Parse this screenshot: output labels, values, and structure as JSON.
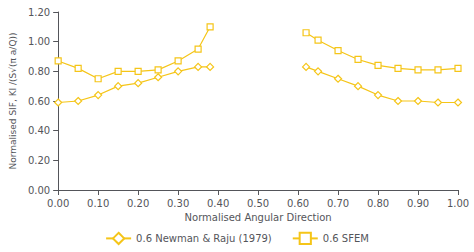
{
  "chart_data": {
    "type": "line",
    "xlabel": "Normalised Angular Direction",
    "ylabel": "Normalised SIF, KI /(S√(π a/Q))",
    "x": [
      0.0,
      0.05,
      0.1,
      0.15,
      0.2,
      0.25,
      0.3,
      0.35,
      0.38,
      null,
      0.62,
      0.65,
      0.7,
      0.75,
      0.8,
      0.85,
      0.9,
      0.95,
      1.0
    ],
    "series": [
      {
        "name": "0.6 Newman & Raju (1979)",
        "color": "#F5C518",
        "marker": "diamond",
        "line_style": "solid",
        "values": [
          0.59,
          0.6,
          0.64,
          0.7,
          0.72,
          0.76,
          0.8,
          0.83,
          0.83,
          null,
          0.83,
          0.8,
          0.75,
          0.7,
          0.64,
          0.6,
          0.6,
          0.59,
          0.59
        ]
      },
      {
        "name": "0.6 SFEM",
        "color": "#F5C518",
        "marker": "square",
        "line_style": "solid",
        "values": [
          0.87,
          0.82,
          0.75,
          0.8,
          0.8,
          0.81,
          0.87,
          0.95,
          1.1,
          null,
          1.06,
          1.01,
          0.94,
          0.88,
          0.84,
          0.82,
          0.81,
          0.81,
          0.82
        ]
      }
    ],
    "xlim": [
      0.0,
      1.0
    ],
    "ylim": [
      0.0,
      1.2
    ],
    "xticks": [
      {
        "value": 0.0,
        "label": "0.00"
      },
      {
        "value": 0.1,
        "label": "0.10"
      },
      {
        "value": 0.2,
        "label": "0.20"
      },
      {
        "value": 0.3,
        "label": "0.30"
      },
      {
        "value": 0.4,
        "label": "0.40"
      },
      {
        "value": 0.5,
        "label": "0.50"
      },
      {
        "value": 0.6,
        "label": "0.60"
      },
      {
        "value": 0.7,
        "label": "0.70"
      },
      {
        "value": 0.8,
        "label": "0.80"
      },
      {
        "value": 0.9,
        "label": "0.90"
      },
      {
        "value": 1.0,
        "label": "1.00"
      }
    ],
    "yticks": [
      {
        "value": 0.0,
        "label": "0.00"
      },
      {
        "value": 0.2,
        "label": "0.20"
      },
      {
        "value": 0.4,
        "label": "0.40"
      },
      {
        "value": 0.6,
        "label": "0.60"
      },
      {
        "value": 0.8,
        "label": "0.80"
      },
      {
        "value": 1.0,
        "label": "1.00"
      },
      {
        "value": 1.2,
        "label": "1.20"
      }
    ],
    "grid": false,
    "legend": "bottom"
  }
}
